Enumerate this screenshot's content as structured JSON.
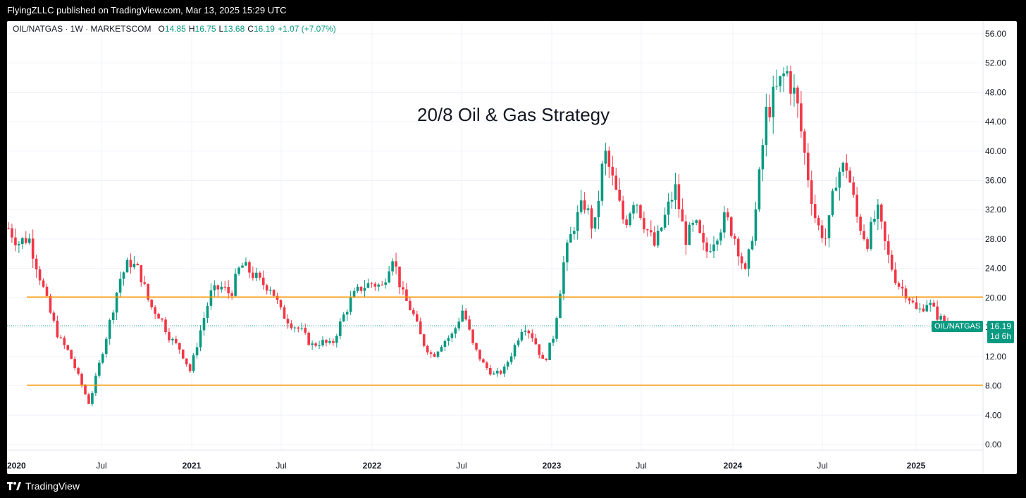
{
  "header": {
    "publisher": "FlyingZLLC published on TradingView.com, Mar 13, 2025 15:29 UTC"
  },
  "legend": {
    "symbol": "OIL/NATGAS · 1W · MARKETSCOM",
    "o_label": "O",
    "o_value": "14.85",
    "h_label": "H",
    "h_value": "16.75",
    "l_label": "L",
    "l_value": "13.68",
    "c_label": "C",
    "c_value": "16.19",
    "change": "+1.07 (+7.07%)"
  },
  "annotation": "20/8 Oil & Gas Strategy",
  "price_label": {
    "symbol": "OIL/NATGAS",
    "price": "16.19",
    "countdown": "1d 6h"
  },
  "footer": {
    "brand": "TradingView"
  },
  "colors": {
    "up": "#089981",
    "down": "#F23645",
    "level": "#FF9800",
    "grid": "#F0F3FA",
    "text": "#131722"
  },
  "chart_data": {
    "type": "candlestick",
    "title": "20/8 Oil & Gas Strategy",
    "ylim": [
      0,
      57
    ],
    "y_ticks": [
      "56.00",
      "52.00",
      "48.00",
      "44.00",
      "40.00",
      "36.00",
      "32.00",
      "28.00",
      "24.00",
      "20.00",
      "16.00",
      "12.00",
      "8.00",
      "4.00",
      "0.00"
    ],
    "x_ticks": [
      "2020",
      "Jul",
      "2021",
      "Jul",
      "2022",
      "Jul",
      "2023",
      "Jul",
      "2024",
      "Jul",
      "2025"
    ],
    "horizontal_levels": [
      20.1,
      8.1
    ],
    "last_price": 16.19,
    "grid": true,
    "series": [
      {
        "name": "OIL/NATGAS",
        "period": "2020-01 to 2025-03, weekly",
        "close_path": [
          29.5,
          27.5,
          28.3,
          23.5,
          18.5,
          14.5,
          12.5,
          9.0,
          5.5,
          11.0,
          16.5,
          22.5,
          25.0,
          23.5,
          19.0,
          17.5,
          14.5,
          13.0,
          10.0,
          15.5,
          20.5,
          21.5,
          20.5,
          24.5,
          23.5,
          22.0,
          21.5,
          18.0,
          16.5,
          15.5,
          13.5,
          14.0,
          13.5,
          17.0,
          20.0,
          21.5,
          22.0,
          21.5,
          26.0,
          20.5,
          18.0,
          14.0,
          12.0,
          14.0,
          15.0,
          18.5,
          13.5,
          11.0,
          9.5,
          10.0,
          13.0,
          16.5,
          14.5,
          11.0,
          15.0,
          25.0,
          30.0,
          33.0,
          29.0,
          40.0,
          35.0,
          30.0,
          34.0,
          30.0,
          27.0,
          31.0,
          35.0,
          28.0,
          30.0,
          26.0,
          28.5,
          31.0,
          28.0,
          23.0,
          32.0,
          45.0,
          48.0,
          51.0,
          47.0,
          38.0,
          30.0,
          28.0,
          37.0,
          38.0,
          31.0,
          27.5,
          32.0,
          26.0,
          22.0,
          20.5,
          18.0,
          19.5,
          17.5,
          16.19
        ]
      }
    ]
  }
}
